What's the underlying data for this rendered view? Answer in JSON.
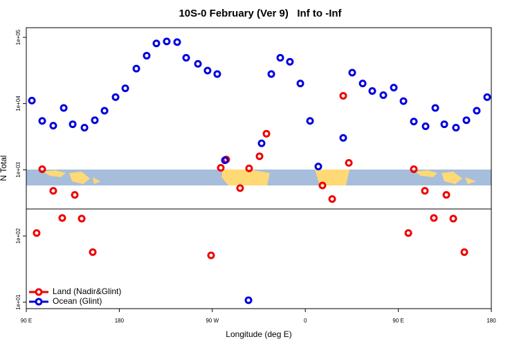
{
  "chart_data": {
    "type": "scatter",
    "title": "10S-0 February (Ver 9)   Inf to -Inf",
    "x_label": "Longitude (deg E)",
    "y_label": "N Total",
    "log_y": true,
    "xlim": [
      90,
      540
    ],
    "ylim": [
      8,
      140000
    ],
    "xticks": [
      {
        "value": 90,
        "label": "90 E"
      },
      180,
      {
        "value": 270,
        "label": "90 W"
      },
      {
        "value": 360,
        "label": "0"
      },
      {
        "value": 450,
        "label": "90 E"
      },
      {
        "value": 540,
        "label": "180"
      }
    ],
    "yticks": [
      {
        "value": 10,
        "label": "1e+01"
      },
      {
        "value": 100,
        "label": "1e+02"
      },
      {
        "value": 1000,
        "label": "1e+03"
      },
      {
        "value": 10000,
        "label": "1e+04"
      },
      {
        "value": 100000,
        "label": "1e+05"
      }
    ],
    "legend": "bottom-left",
    "series": [
      {
        "name": "Land (Nadir&Glint)",
        "color": "#ee0000",
        "x": [
          100,
          105.4,
          116.1,
          124.8,
          136.9,
          143.6,
          154.3,
          268.8,
          278.2,
          283.5,
          296.9,
          305.6,
          315.7,
          322.4,
          376.6,
          386,
          396.7,
          402.1,
          459.7,
          465,
          475.7,
          484.4,
          496.5,
          503.2,
          513.9
        ],
        "values": [
          111,
          1020,
          481,
          187,
          418,
          183,
          57,
          51,
          1070,
          1430,
          528,
          1050,
          1600,
          3500,
          580,
          362,
          13100,
          1270,
          111,
          1020,
          481,
          187,
          418,
          183,
          57
        ]
      },
      {
        "name": "Ocean (Glint)",
        "color": "#0000dd",
        "x": [
          95.4,
          105.4,
          116.1,
          126.2,
          134.9,
          146.3,
          156.3,
          165.7,
          176.4,
          185.8,
          196.5,
          206.5,
          215.9,
          225.9,
          236,
          244.7,
          256.1,
          265.4,
          274.8,
          282.2,
          305,
          317.7,
          327.1,
          335.8,
          345.1,
          355.2,
          364.6,
          372.6,
          396.7,
          405.4,
          415.5,
          424.8,
          435.5,
          445.6,
          455,
          465,
          476.4,
          485.8,
          494.5,
          505.8,
          515.9,
          525.9,
          536
        ],
        "values": [
          11100,
          5470,
          4640,
          8580,
          4870,
          4330,
          5610,
          7800,
          12500,
          17000,
          33700,
          52900,
          80900,
          86700,
          84800,
          49200,
          39800,
          31500,
          27900,
          1390,
          10.7,
          2510,
          27900,
          49200,
          42800,
          20100,
          5470,
          1120,
          3030,
          29300,
          20100,
          15500,
          13400,
          17400,
          10900,
          5350,
          4540,
          8580,
          4870,
          4330,
          5610,
          7800,
          12500
        ]
      }
    ]
  }
}
